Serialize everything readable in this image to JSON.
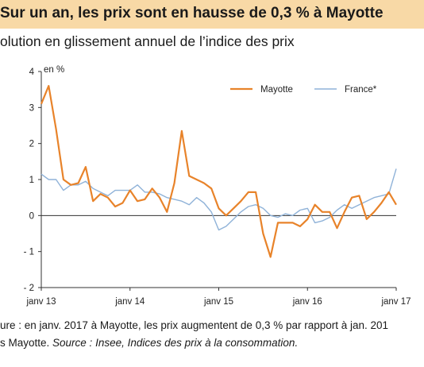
{
  "title": "Sur un an, les prix sont en hausse de 0,3 % à Mayotte",
  "subtitle": "olution en glissement annuel de l’indice des prix",
  "notes": {
    "line1": "ure : en janv. 2017 à Mayotte, les prix augmentent de 0,3 % par rapport à jan. 201",
    "line2_plain": "s Mayotte. ",
    "line2_source_label": "Source :",
    "line2_source_text": " Insee, Indices des prix à la consommation."
  },
  "colors": {
    "mayotte": "#e8832a",
    "france": "#8fb2d8",
    "title_bg": "#f8d9a6"
  },
  "chart_data": {
    "type": "line",
    "ylabel": "en %",
    "ylim": [
      -2,
      4
    ],
    "yticks": [
      -2,
      -1,
      0,
      1,
      2,
      3,
      4
    ],
    "ytick_labels": [
      "- 2",
      "- 1",
      "0",
      "1",
      "2",
      "3",
      "4"
    ],
    "xticks": [
      {
        "index": 0,
        "label": "janv 13"
      },
      {
        "index": 12,
        "label": "janv 14"
      },
      {
        "index": 24,
        "label": "janv 15"
      },
      {
        "index": 36,
        "label": "janv 16"
      },
      {
        "index": 48,
        "label": "janv 17"
      }
    ],
    "legend_position": "top-right",
    "grid": false,
    "series": [
      {
        "name": "Mayotte",
        "values": [
          3.1,
          3.6,
          2.4,
          1.0,
          0.85,
          0.9,
          1.35,
          0.4,
          0.6,
          0.5,
          0.25,
          0.35,
          0.7,
          0.4,
          0.45,
          0.75,
          0.5,
          0.1,
          0.9,
          2.35,
          1.1,
          1.0,
          0.9,
          0.75,
          0.2,
          0.0,
          0.2,
          0.4,
          0.65,
          0.65,
          -0.5,
          -1.15,
          -0.2,
          -0.2,
          -0.2,
          -0.3,
          -0.1,
          0.3,
          0.1,
          0.1,
          -0.35,
          0.1,
          0.5,
          0.55,
          -0.1,
          0.1,
          0.35,
          0.65,
          0.3
        ]
      },
      {
        "name": "France*",
        "values": [
          1.15,
          1.0,
          1.0,
          0.7,
          0.85,
          0.85,
          0.95,
          0.75,
          0.65,
          0.55,
          0.7,
          0.7,
          0.7,
          0.85,
          0.65,
          0.65,
          0.6,
          0.5,
          0.45,
          0.4,
          0.3,
          0.5,
          0.35,
          0.1,
          -0.4,
          -0.3,
          -0.1,
          0.1,
          0.25,
          0.3,
          0.2,
          0.0,
          -0.05,
          0.05,
          0.0,
          0.15,
          0.2,
          -0.2,
          -0.15,
          -0.05,
          0.15,
          0.3,
          0.2,
          0.3,
          0.4,
          0.5,
          0.55,
          0.6,
          1.3
        ]
      }
    ]
  }
}
